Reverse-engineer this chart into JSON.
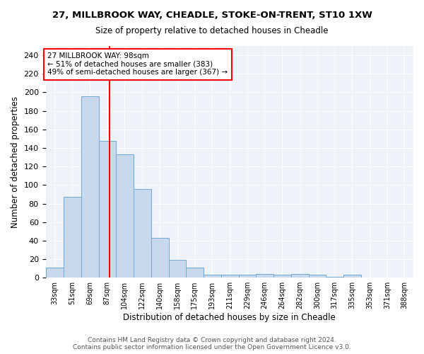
{
  "title": "27, MILLBROOK WAY, CHEADLE, STOKE-ON-TRENT, ST10 1XW",
  "subtitle": "Size of property relative to detached houses in Cheadle",
  "xlabel": "Distribution of detached houses by size in Cheadle",
  "ylabel": "Number of detached properties",
  "bar_values": [
    11,
    87,
    196,
    148,
    133,
    96,
    43,
    19,
    11,
    3,
    3,
    3,
    4,
    3,
    4,
    3,
    1,
    3,
    0,
    0,
    0
  ],
  "x_tick_labels": [
    "33sqm",
    "51sqm",
    "69sqm",
    "87sqm",
    "104sqm",
    "122sqm",
    "140sqm",
    "158sqm",
    "175sqm",
    "193sqm",
    "211sqm",
    "229sqm",
    "246sqm",
    "264sqm",
    "282sqm",
    "300sqm",
    "317sqm",
    "335sqm",
    "353sqm",
    "371sqm",
    "388sqm"
  ],
  "bar_color": "#c9d9ed",
  "bar_edge_color": "#6fa8d6",
  "vline_x": 98,
  "vline_color": "red",
  "annotation_text": "27 MILLBROOK WAY: 98sqm\n← 51% of detached houses are smaller (383)\n49% of semi-detached houses are larger (367) →",
  "annotation_box_color": "white",
  "annotation_box_edge": "red",
  "ylim": [
    0,
    250
  ],
  "yticks": [
    0,
    20,
    40,
    60,
    80,
    100,
    120,
    140,
    160,
    180,
    200,
    220,
    240
  ],
  "bg_color": "#eef2f9",
  "footer_text": "Contains HM Land Registry data © Crown copyright and database right 2024.\nContains public sector information licensed under the Open Government Licence v3.0.",
  "bin_edges": [
    33,
    51,
    69,
    87,
    104,
    122,
    140,
    158,
    175,
    193,
    211,
    229,
    246,
    264,
    282,
    300,
    317,
    335,
    353,
    371,
    388,
    406
  ]
}
